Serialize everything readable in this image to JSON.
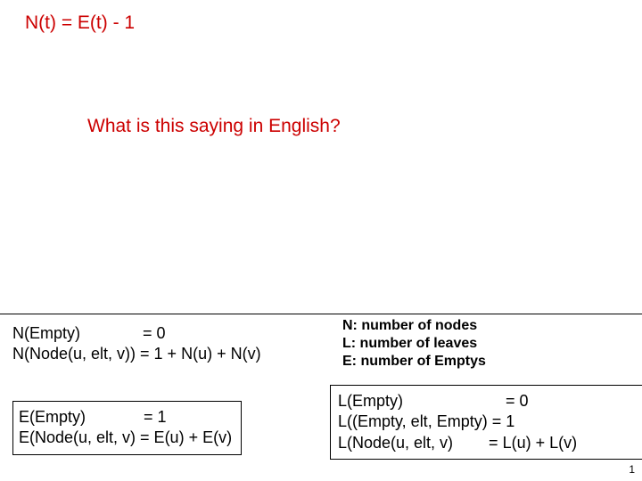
{
  "header": {
    "equation": "N(t) = E(t) - 1"
  },
  "question": "What is this saying in English?",
  "n_definitions": {
    "line1": "N(Empty)              = 0",
    "line2": "N(Node(u, elt, v)) = 1 + N(u) + N(v)"
  },
  "legend": {
    "l1": "N: number of nodes",
    "l2": "L: number of leaves",
    "l3": "E: number of Emptys"
  },
  "e_definitions": {
    "line1": "E(Empty)             = 1",
    "line2": "E(Node(u, elt, v) = E(u) + E(v)"
  },
  "l_definitions": {
    "line1": "L(Empty)                       = 0",
    "line2": "L((Empty, elt, Empty) = 1",
    "line3": "L(Node(u, elt, v)        = L(u) + L(v)"
  },
  "slide_number": "1",
  "colors": {
    "accent": "#cc0000",
    "text": "#000000",
    "background": "#ffffff",
    "border": "#000000"
  },
  "typography": {
    "font_family": "Arial",
    "heading_size_pt": 16,
    "body_size_pt": 14,
    "legend_size_pt": 12
  }
}
